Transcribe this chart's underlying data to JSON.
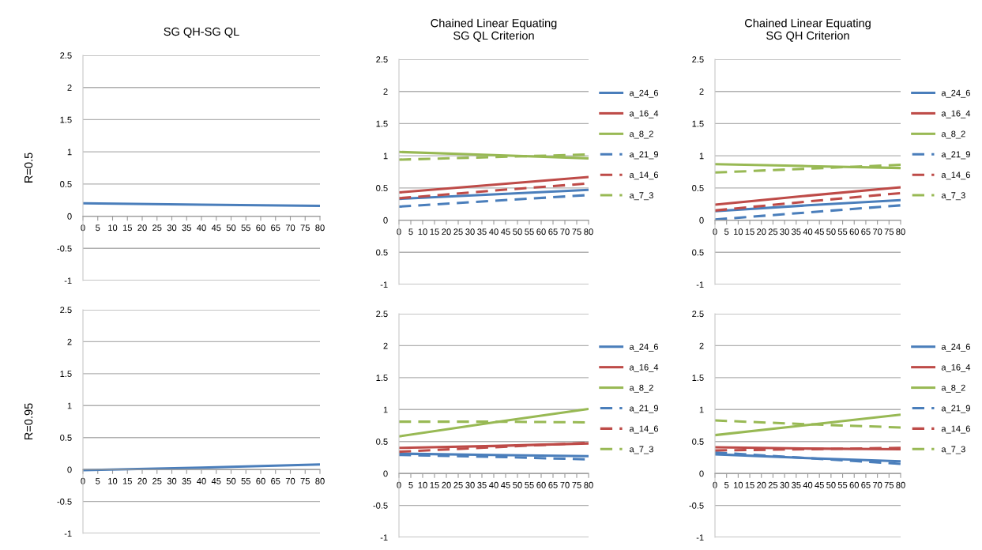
{
  "chart_data": [
    {
      "type": "line",
      "title": "SG QH-SG QL",
      "ylabel": "R=0.5",
      "x": [
        0,
        40,
        80
      ],
      "xlim": [
        0,
        80
      ],
      "xticks": [
        0,
        5,
        10,
        15,
        20,
        25,
        30,
        35,
        40,
        45,
        50,
        55,
        60,
        65,
        70,
        75,
        80
      ],
      "ylim": [
        -1,
        2.5
      ],
      "yticks": [
        -1,
        -0.5,
        0,
        0.5,
        1,
        1.5,
        2,
        2.5
      ],
      "grid": "y",
      "legend": false,
      "line_style": "solid",
      "series": [
        {
          "color": "#4a7ebb",
          "values": [
            0.2,
            0.18,
            0.16
          ]
        }
      ]
    },
    {
      "type": "line",
      "title": "Chained Linear Equating\nSG QL Criterion",
      "x": [
        0,
        40,
        80
      ],
      "xlim": [
        0,
        80
      ],
      "xticks": [
        0,
        5,
        10,
        15,
        20,
        25,
        30,
        35,
        40,
        45,
        50,
        55,
        60,
        65,
        70,
        75,
        80
      ],
      "ylim": [
        -1,
        2.5
      ],
      "yticks": [
        -1,
        {
          "value": -0.5,
          "label": "0.5"
        },
        0,
        0.5,
        1,
        1.5,
        2,
        2.5
      ],
      "grid": "y",
      "legend": "right",
      "series": [
        {
          "name": "a_24_6",
          "color": "#4a7ebb",
          "line_style": "solid",
          "values": [
            0.33,
            0.4,
            0.47
          ]
        },
        {
          "name": "a_16_4",
          "color": "#be4b48",
          "line_style": "solid",
          "values": [
            0.43,
            0.55,
            0.67
          ]
        },
        {
          "name": "a_8_2",
          "color": "#98b954",
          "line_style": "solid",
          "values": [
            1.06,
            1.01,
            0.96
          ]
        },
        {
          "name": "a_21_9",
          "color": "#4a7ebb",
          "line_style": "dashed",
          "values": [
            0.21,
            0.3,
            0.39
          ]
        },
        {
          "name": "a_14_6",
          "color": "#be4b48",
          "line_style": "dashed",
          "values": [
            0.34,
            0.46,
            0.57
          ]
        },
        {
          "name": "a_7_3",
          "color": "#98b954",
          "line_style": "dashed",
          "values": [
            0.94,
            0.98,
            1.02
          ]
        }
      ]
    },
    {
      "type": "line",
      "title": "Chained Linear Equating\nSG QH Criterion",
      "x": [
        0,
        40,
        80
      ],
      "xlim": [
        0,
        80
      ],
      "xticks": [
        0,
        5,
        10,
        15,
        20,
        25,
        30,
        35,
        40,
        45,
        50,
        55,
        60,
        65,
        70,
        75,
        80
      ],
      "ylim": [
        -1,
        2.5
      ],
      "yticks": [
        -1,
        {
          "value": -0.5,
          "label": "0.5"
        },
        0,
        0.5,
        1,
        1.5,
        2,
        2.5
      ],
      "grid": "y",
      "legend": "right",
      "series": [
        {
          "name": "a_24_6",
          "color": "#4a7ebb",
          "line_style": "solid",
          "values": [
            0.14,
            0.23,
            0.31
          ]
        },
        {
          "name": "a_16_4",
          "color": "#be4b48",
          "line_style": "solid",
          "values": [
            0.24,
            0.38,
            0.51
          ]
        },
        {
          "name": "a_8_2",
          "color": "#98b954",
          "line_style": "solid",
          "values": [
            0.87,
            0.84,
            0.81
          ]
        },
        {
          "name": "a_21_9",
          "color": "#4a7ebb",
          "line_style": "dashed",
          "values": [
            0.01,
            0.12,
            0.23
          ]
        },
        {
          "name": "a_14_6",
          "color": "#be4b48",
          "line_style": "dashed",
          "values": [
            0.15,
            0.29,
            0.42
          ]
        },
        {
          "name": "a_7_3",
          "color": "#98b954",
          "line_style": "dashed",
          "values": [
            0.74,
            0.8,
            0.86
          ]
        }
      ]
    },
    {
      "type": "line",
      "ylabel": "R=0.95",
      "x": [
        0,
        40,
        80
      ],
      "xlim": [
        0,
        80
      ],
      "xticks": [
        0,
        5,
        10,
        15,
        20,
        25,
        30,
        35,
        40,
        45,
        50,
        55,
        60,
        65,
        70,
        75,
        80
      ],
      "ylim": [
        -1,
        2.5
      ],
      "yticks": [
        -1,
        -0.5,
        0,
        0.5,
        1,
        1.5,
        2,
        2.5
      ],
      "grid": "y",
      "legend": false,
      "line_style": "solid",
      "series": [
        {
          "color": "#4a7ebb",
          "values": [
            -0.01,
            0.03,
            0.08
          ]
        }
      ]
    },
    {
      "type": "line",
      "x": [
        0,
        40,
        80
      ],
      "xlim": [
        0,
        80
      ],
      "xticks": [
        0,
        5,
        10,
        15,
        20,
        25,
        30,
        35,
        40,
        45,
        50,
        55,
        60,
        65,
        70,
        75,
        80
      ],
      "ylim": [
        -1,
        2.5
      ],
      "yticks": [
        -1,
        -0.5,
        0,
        0.5,
        1,
        1.5,
        2,
        2.5
      ],
      "grid": "y",
      "legend": "right",
      "series": [
        {
          "name": "a_24_6",
          "color": "#4a7ebb",
          "line_style": "solid",
          "values": [
            0.31,
            0.29,
            0.27
          ]
        },
        {
          "name": "a_16_4",
          "color": "#be4b48",
          "line_style": "solid",
          "values": [
            0.4,
            0.43,
            0.47
          ]
        },
        {
          "name": "a_8_2",
          "color": "#98b954",
          "line_style": "solid",
          "values": [
            0.58,
            0.8,
            1.01
          ]
        },
        {
          "name": "a_21_9",
          "color": "#4a7ebb",
          "line_style": "dashed",
          "values": [
            0.29,
            0.26,
            0.22
          ]
        },
        {
          "name": "a_14_6",
          "color": "#be4b48",
          "line_style": "dashed",
          "values": [
            0.34,
            0.41,
            0.48
          ]
        },
        {
          "name": "a_7_3",
          "color": "#98b954",
          "line_style": "dashed",
          "values": [
            0.81,
            0.81,
            0.8
          ]
        }
      ]
    },
    {
      "type": "line",
      "x": [
        0,
        40,
        80
      ],
      "xlim": [
        0,
        80
      ],
      "xticks": [
        0,
        5,
        10,
        15,
        20,
        25,
        30,
        35,
        40,
        45,
        50,
        55,
        60,
        65,
        70,
        75,
        80
      ],
      "ylim": [
        -1,
        2.5
      ],
      "yticks": [
        -1,
        -0.5,
        0,
        0.5,
        1,
        1.5,
        2,
        2.5
      ],
      "grid": "y",
      "legend": "right",
      "series": [
        {
          "name": "a_24_6",
          "color": "#4a7ebb",
          "line_style": "solid",
          "values": [
            0.3,
            0.24,
            0.19
          ]
        },
        {
          "name": "a_16_4",
          "color": "#be4b48",
          "line_style": "solid",
          "values": [
            0.41,
            0.39,
            0.38
          ]
        },
        {
          "name": "a_8_2",
          "color": "#98b954",
          "line_style": "solid",
          "values": [
            0.6,
            0.76,
            0.92
          ]
        },
        {
          "name": "a_21_9",
          "color": "#4a7ebb",
          "line_style": "dashed",
          "values": [
            0.33,
            0.24,
            0.15
          ]
        },
        {
          "name": "a_14_6",
          "color": "#be4b48",
          "line_style": "dashed",
          "values": [
            0.36,
            0.38,
            0.4
          ]
        },
        {
          "name": "a_7_3",
          "color": "#98b954",
          "line_style": "dashed",
          "values": [
            0.83,
            0.77,
            0.72
          ]
        }
      ]
    }
  ]
}
